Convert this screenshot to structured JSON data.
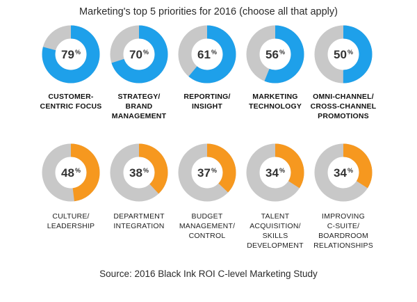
{
  "title": "Marketing's top 5 priorities for 2016 (choose all that apply)",
  "source": "Source: 2016 Black Ink ROI C-level Marketing Study",
  "colors": {
    "blue": "#1ea0ea",
    "orange": "#f6981f",
    "gray": "#c8c8c8"
  },
  "chart_data": {
    "type": "pie",
    "donut": true,
    "unit": "%",
    "categories": [
      "CUSTOMER-CENTRIC FOCUS",
      "STRATEGY/ BRAND MANAGEMENT",
      "REPORTING/ INSIGHT",
      "MARKETING TECHNOLOGY",
      "OMNI-CHANNEL/ CROSS-CHANNEL PROMOTIONS",
      "CULTURE/ LEADERSHIP",
      "DEPARTMENT INTEGRATION",
      "BUDGET MANAGEMENT/ CONTROL",
      "TALENT ACQUISITION/ SKILLS DEVELOPMENT",
      "IMPROVING C-SUITE/ BOARDROOM RELATIONSHIPS"
    ],
    "values": [
      79,
      70,
      61,
      56,
      50,
      48,
      38,
      37,
      34,
      34
    ]
  },
  "rows": [
    {
      "items": [
        {
          "value": 79,
          "color": "#1ea0ea",
          "label_lines": [
            "CUSTOMER-",
            "CENTRIC FOCUS"
          ]
        },
        {
          "value": 70,
          "color": "#1ea0ea",
          "label_lines": [
            "STRATEGY/",
            "BRAND",
            "MANAGEMENT"
          ]
        },
        {
          "value": 61,
          "color": "#1ea0ea",
          "label_lines": [
            "REPORTING/",
            "INSIGHT"
          ]
        },
        {
          "value": 56,
          "color": "#1ea0ea",
          "label_lines": [
            "MARKETING",
            "TECHNOLOGY"
          ]
        },
        {
          "value": 50,
          "color": "#1ea0ea",
          "label_lines": [
            "OMNI-CHANNEL/",
            "CROSS-CHANNEL",
            "PROMOTIONS"
          ]
        }
      ]
    },
    {
      "items": [
        {
          "value": 48,
          "color": "#f6981f",
          "label_lines": [
            "CULTURE/",
            "LEADERSHIP"
          ]
        },
        {
          "value": 38,
          "color": "#f6981f",
          "label_lines": [
            "DEPARTMENT",
            "INTEGRATION"
          ]
        },
        {
          "value": 37,
          "color": "#f6981f",
          "label_lines": [
            "BUDGET",
            "MANAGEMENT/",
            "CONTROL"
          ]
        },
        {
          "value": 34,
          "color": "#f6981f",
          "label_lines": [
            "TALENT",
            "ACQUISITION/",
            "SKILLS",
            "DEVELOPMENT"
          ]
        },
        {
          "value": 34,
          "color": "#f6981f",
          "label_lines": [
            "IMPROVING",
            "C-SUITE/",
            "BOARDROOM",
            "RELATIONSHIPS"
          ]
        }
      ]
    }
  ]
}
